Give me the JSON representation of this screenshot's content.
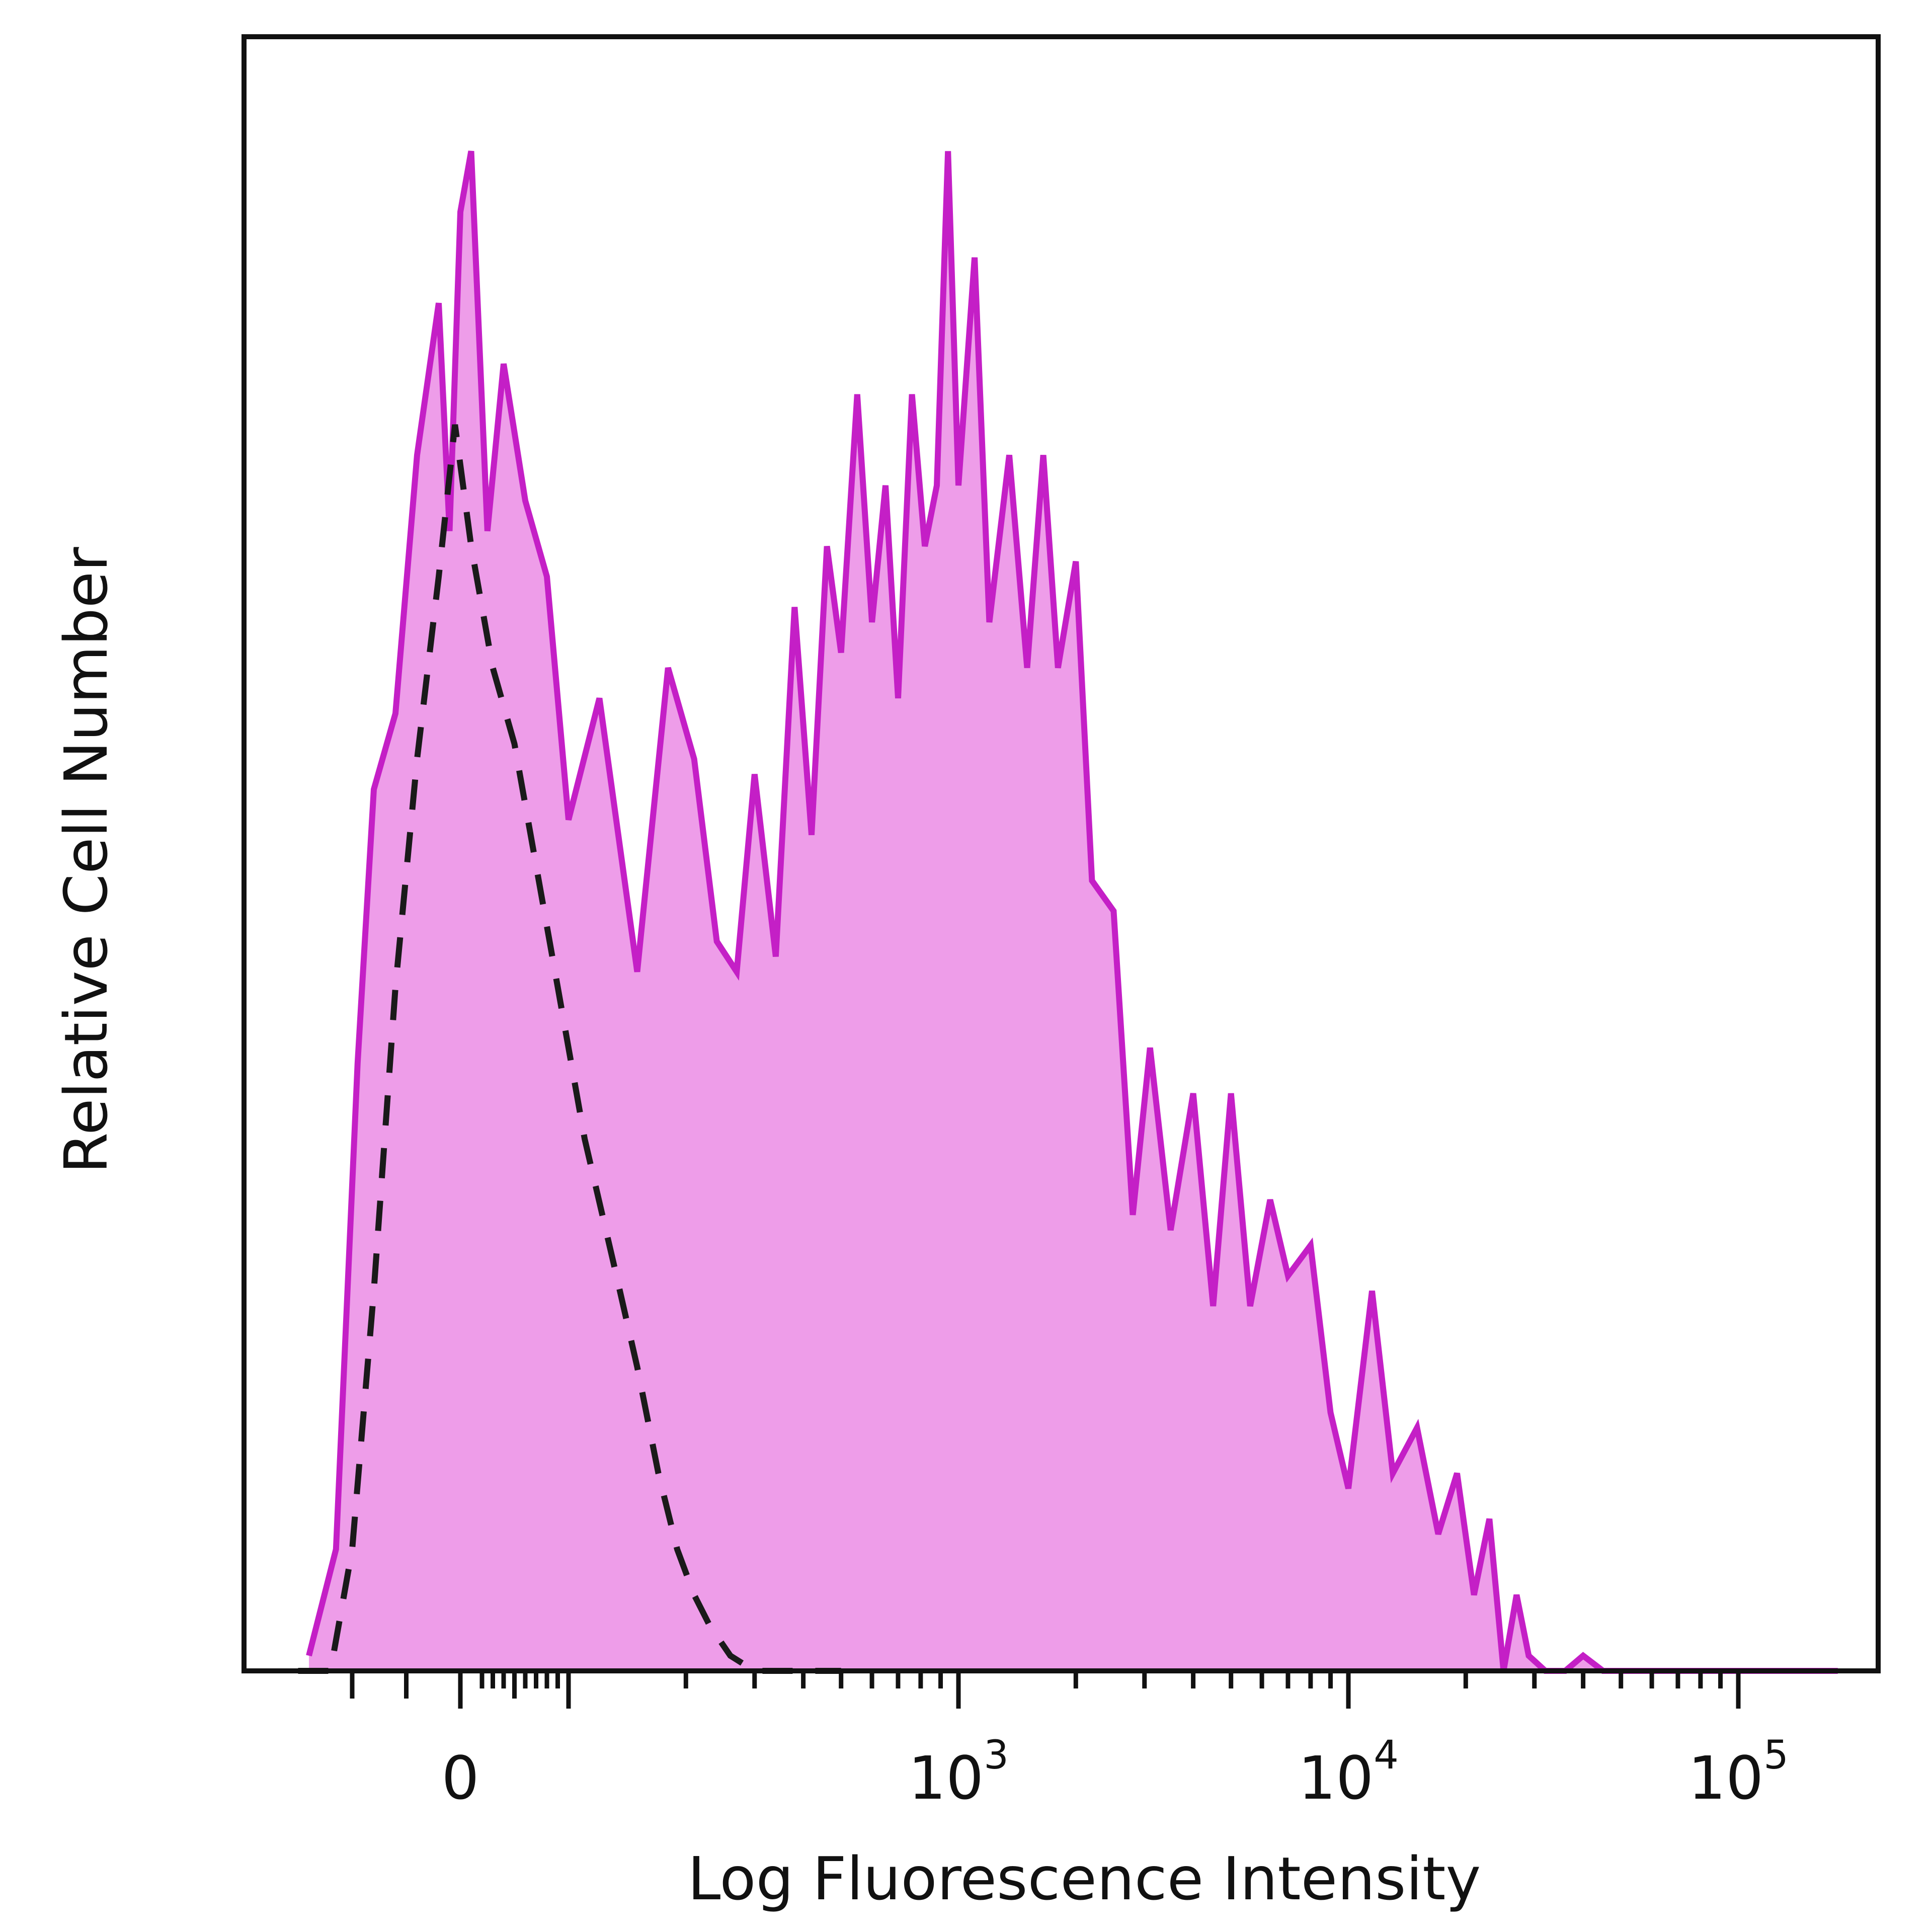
{
  "chart_data": {
    "type": "area",
    "xlabel": "Log Fluorescence Intensity",
    "ylabel": "Relative Cell Number",
    "x_scale": "biexponential",
    "x_ticks": [
      {
        "value": 0,
        "base": "0",
        "exp": ""
      },
      {
        "value": 1000,
        "base": "10",
        "exp": "3"
      },
      {
        "value": 10000,
        "base": "10",
        "exp": "4"
      },
      {
        "value": 100000,
        "base": "10",
        "exp": "5"
      }
    ],
    "ylim": [
      0,
      1
    ],
    "grid": false,
    "legend": "none",
    "series": [
      {
        "style": "filled",
        "color": "#c41fc6",
        "fill": "#ee9de9",
        "x": [
          -140,
          -115,
          -95,
          -80,
          -60,
          -40,
          -20,
          -10,
          0,
          10,
          25,
          40,
          60,
          80,
          100,
          120,
          150,
          180,
          210,
          240,
          270,
          300,
          340,
          380,
          420,
          460,
          500,
          550,
          600,
          650,
          700,
          760,
          820,
          880,
          940,
          1000,
          1100,
          1200,
          1350,
          1500,
          1650,
          1800,
          2000,
          2200,
          2500,
          2800,
          3100,
          3500,
          4000,
          4500,
          5000,
          5600,
          6300,
          7000,
          8000,
          9000,
          10000,
          11500,
          13000,
          15000,
          17000,
          19000,
          21000,
          23000,
          25000,
          27000,
          29000,
          32000,
          36000,
          40000,
          45000,
          50000,
          60000,
          80000,
          100000,
          140000,
          180000
        ],
        "y": [
          0.01,
          0.08,
          0.4,
          0.58,
          0.63,
          0.8,
          0.9,
          0.75,
          0.96,
          1.0,
          0.75,
          0.86,
          0.77,
          0.72,
          0.56,
          0.64,
          0.46,
          0.66,
          0.6,
          0.48,
          0.46,
          0.59,
          0.47,
          0.7,
          0.55,
          0.74,
          0.67,
          0.84,
          0.69,
          0.78,
          0.64,
          0.84,
          0.74,
          0.78,
          1.0,
          0.78,
          0.93,
          0.69,
          0.8,
          0.66,
          0.8,
          0.66,
          0.73,
          0.52,
          0.5,
          0.3,
          0.41,
          0.29,
          0.38,
          0.24,
          0.38,
          0.24,
          0.31,
          0.26,
          0.28,
          0.17,
          0.12,
          0.25,
          0.13,
          0.16,
          0.09,
          0.13,
          0.05,
          0.1,
          0.0,
          0.05,
          0.01,
          0.0,
          0.0,
          0.01,
          0.0,
          0.0,
          0.0,
          0.0,
          0.0,
          0.0,
          0.0
        ]
      },
      {
        "style": "dashed",
        "color": "#1a1a1a",
        "x": [
          -150,
          -120,
          -100,
          -80,
          -60,
          -40,
          -20,
          -5,
          10,
          30,
          50,
          70,
          90,
          110,
          130,
          150,
          170,
          190,
          210,
          230,
          260,
          300,
          350,
          400,
          500
        ],
        "y": [
          0.0,
          0.0,
          0.08,
          0.25,
          0.45,
          0.6,
          0.72,
          0.82,
          0.74,
          0.66,
          0.61,
          0.53,
          0.45,
          0.35,
          0.27,
          0.2,
          0.13,
          0.08,
          0.05,
          0.03,
          0.01,
          0.0,
          0.0,
          0.0,
          0.0
        ]
      }
    ]
  }
}
